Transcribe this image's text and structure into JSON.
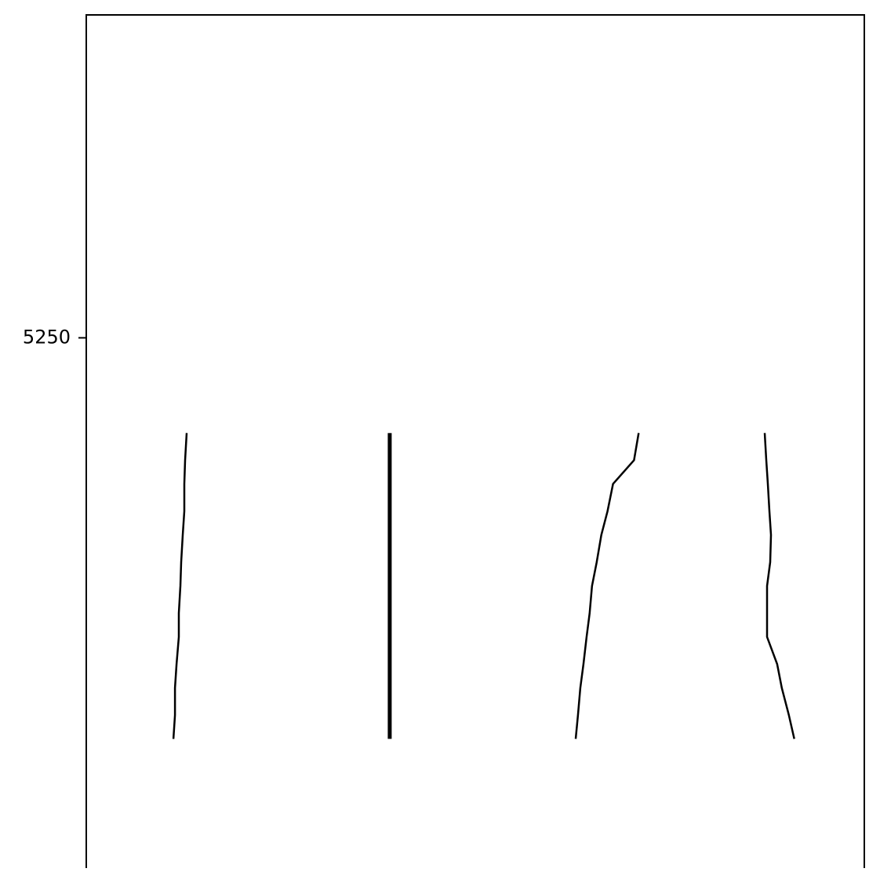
{
  "chart_data": {
    "type": "line",
    "title": "",
    "xlabel": "",
    "ylabel": "",
    "grid": false,
    "legend": "none",
    "ylim": [
      5094,
      5345
    ],
    "xlim": [
      0,
      10
    ],
    "yticks": [
      {
        "value": 5250,
        "label": "5250"
      }
    ],
    "xticks": [],
    "series": [
      {
        "points": [
          [
            1.29,
            5222
          ],
          [
            1.27,
            5214
          ],
          [
            1.26,
            5207
          ],
          [
            1.26,
            5199
          ],
          [
            1.24,
            5192
          ],
          [
            1.22,
            5184
          ],
          [
            1.21,
            5177
          ],
          [
            1.19,
            5169
          ],
          [
            1.19,
            5162
          ],
          [
            1.16,
            5154
          ],
          [
            1.14,
            5147
          ],
          [
            1.14,
            5139
          ],
          [
            1.12,
            5132
          ]
        ],
        "color": "#000000",
        "width": 2.5
      },
      {
        "points": [
          [
            3.9,
            5222
          ],
          [
            3.9,
            5132
          ]
        ],
        "color": "#000000",
        "width": 5
      },
      {
        "points": [
          [
            7.1,
            5222
          ],
          [
            7.04,
            5214
          ],
          [
            6.77,
            5207
          ],
          [
            6.7,
            5199
          ],
          [
            6.62,
            5192
          ],
          [
            6.56,
            5184
          ],
          [
            6.5,
            5177
          ],
          [
            6.47,
            5169
          ],
          [
            6.43,
            5162
          ],
          [
            6.39,
            5154
          ],
          [
            6.35,
            5147
          ],
          [
            6.32,
            5139
          ],
          [
            6.29,
            5132
          ]
        ],
        "color": "#000000",
        "width": 2.5
      },
      {
        "points": [
          [
            8.72,
            5222
          ],
          [
            8.74,
            5214
          ],
          [
            8.76,
            5207
          ],
          [
            8.78,
            5199
          ],
          [
            8.8,
            5192
          ],
          [
            8.79,
            5184
          ],
          [
            8.75,
            5177
          ],
          [
            8.75,
            5169
          ],
          [
            8.75,
            5162
          ],
          [
            8.88,
            5154
          ],
          [
            8.94,
            5147
          ],
          [
            9.03,
            5139
          ],
          [
            9.1,
            5132
          ]
        ],
        "color": "#000000",
        "width": 2.5
      }
    ]
  }
}
